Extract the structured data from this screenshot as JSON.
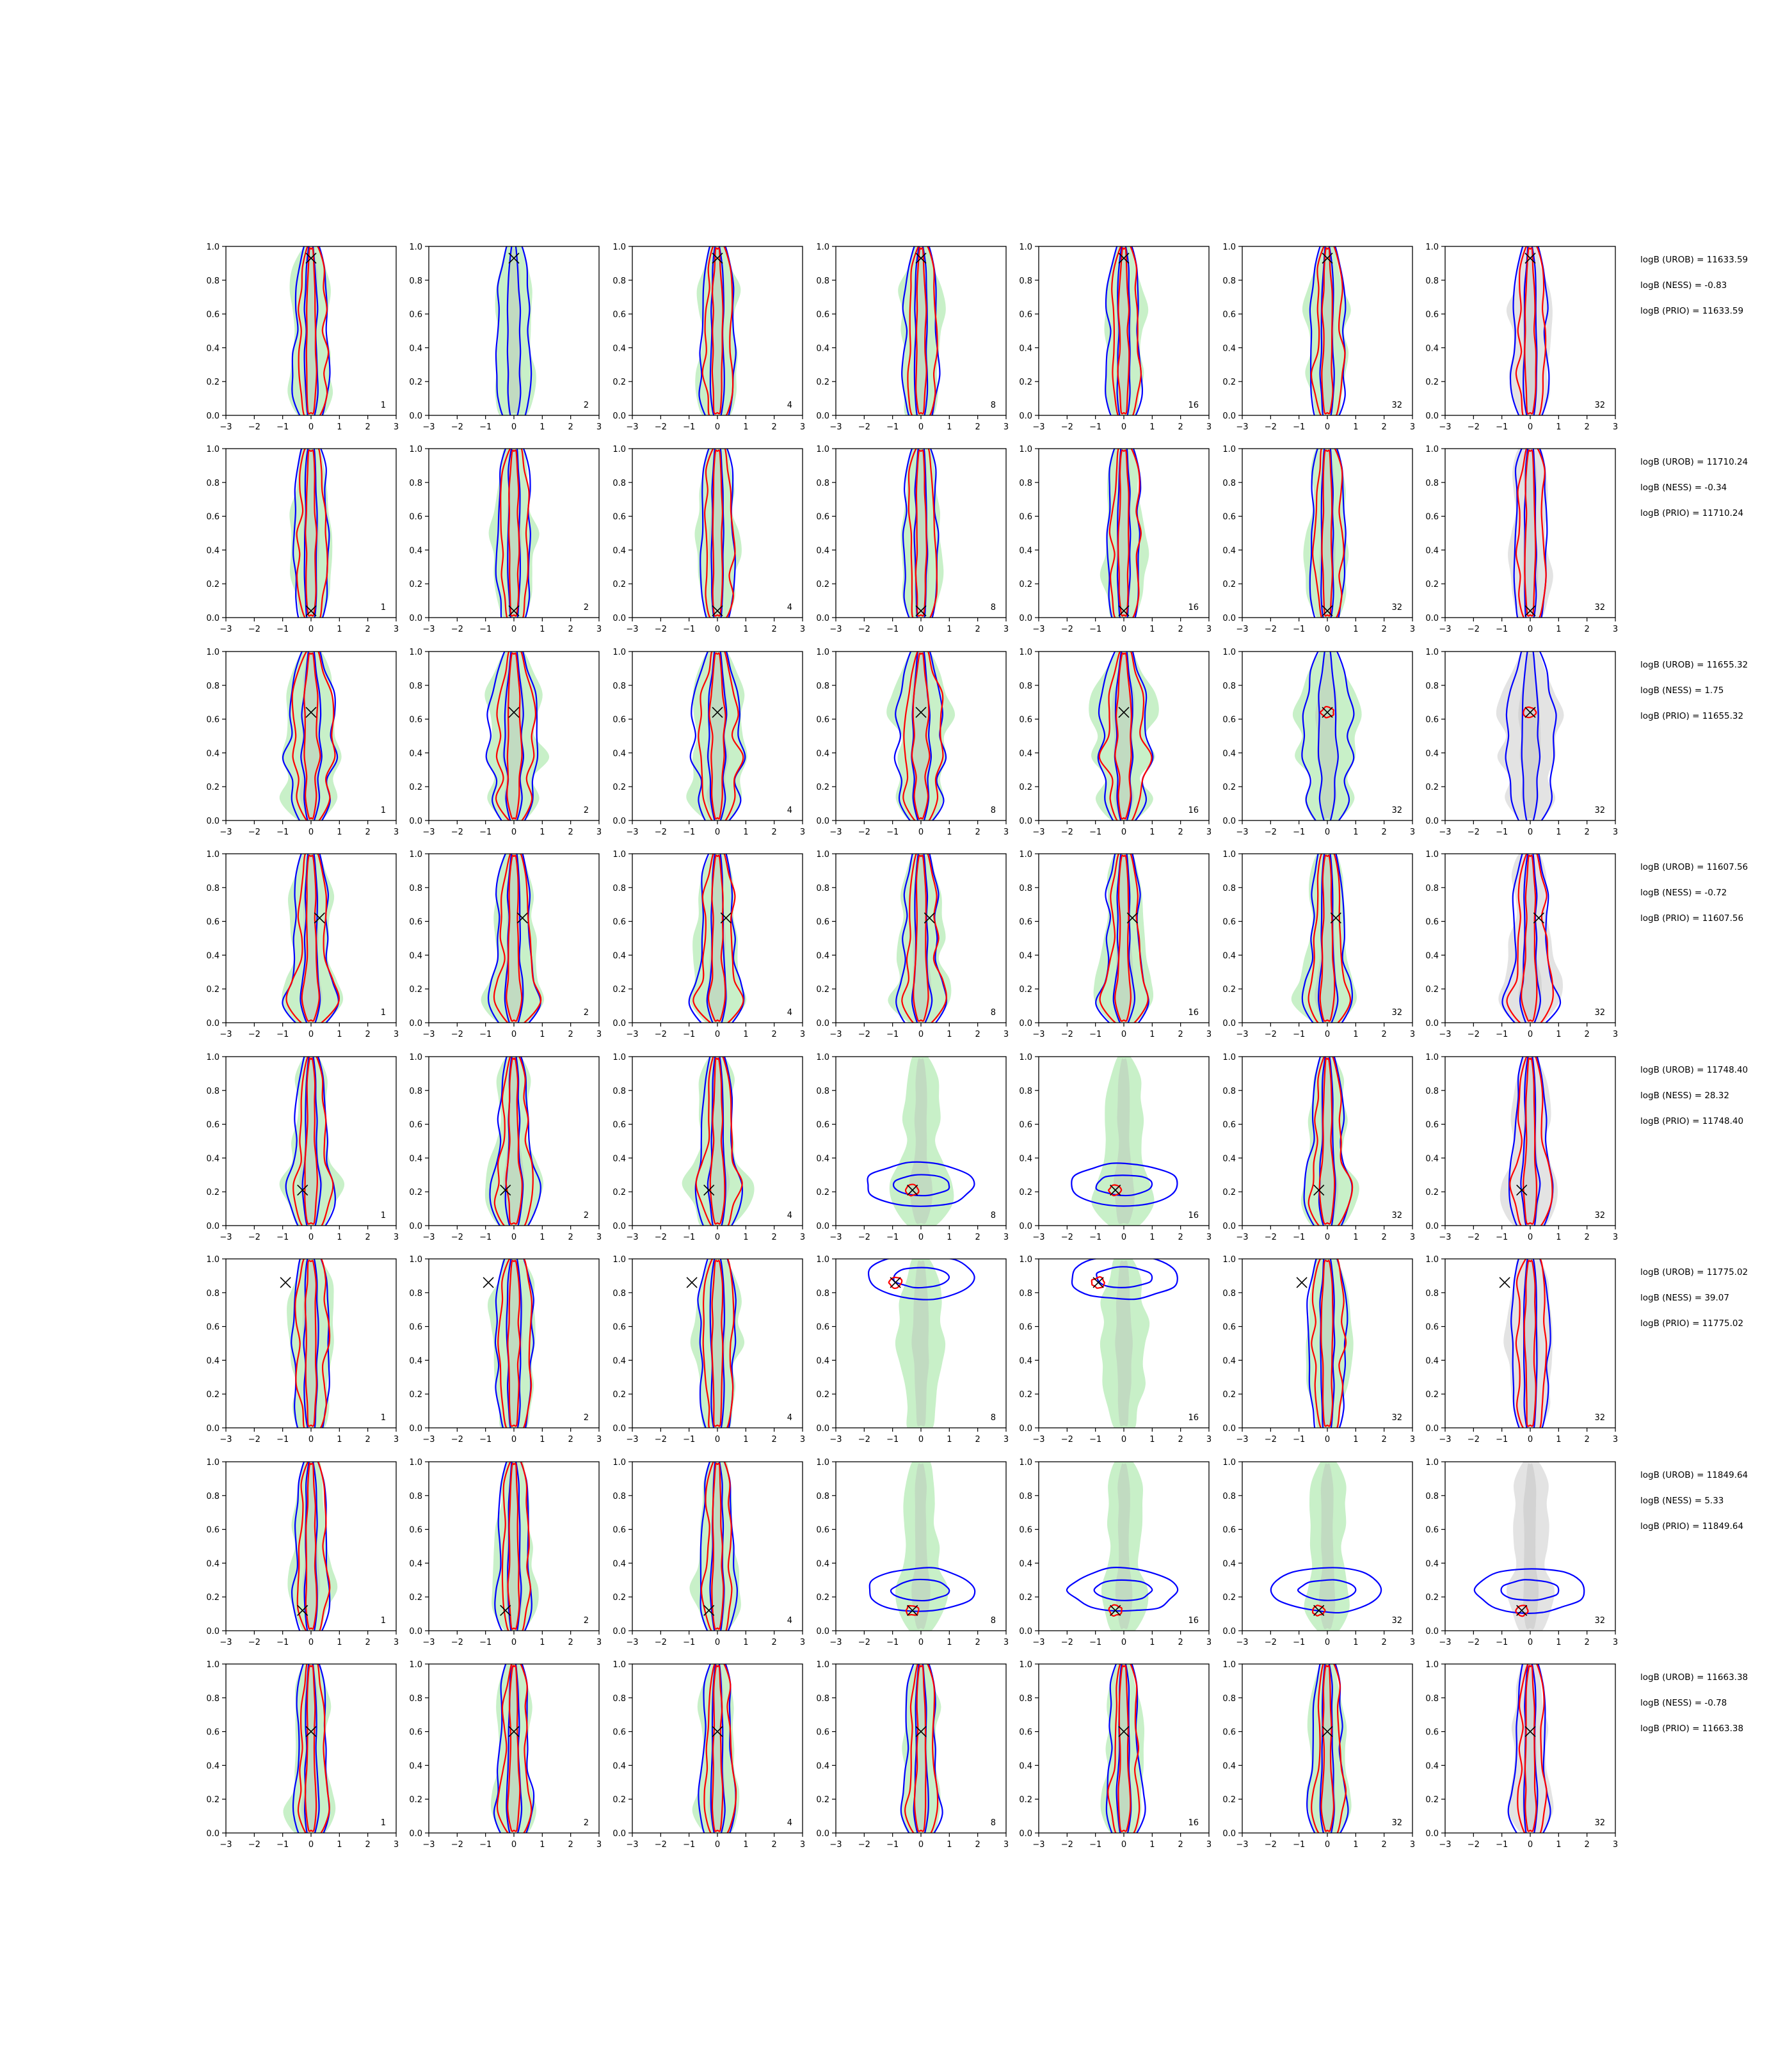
{
  "colors": {
    "background_fill": "#c8f0c8",
    "background_fill_alt": "#e3e3e3",
    "inner_shade": "#b4b4b4",
    "blue_contour": "#0000ff",
    "red_contour": "#ff0000",
    "marker": "#000000"
  },
  "chart_data": {
    "type": "grid of 2D density contour plots",
    "rows": 8,
    "cols": 7,
    "xlim": [
      -3,
      3
    ],
    "ylim": [
      0.0,
      1.0
    ],
    "xticks": [
      "−3",
      "−2",
      "−1",
      "0",
      "1",
      "2",
      "3"
    ],
    "yticks": [
      "0.0",
      "0.2",
      "0.4",
      "0.6",
      "0.8",
      "1.0"
    ],
    "col_tags": [
      "1",
      "2",
      "4",
      "8",
      "16",
      "32",
      "32"
    ],
    "marker": "x",
    "grid": false,
    "legend": "none",
    "row_markers": [
      {
        "x": 0.0,
        "y": 0.93
      },
      {
        "x": 0.0,
        "y": 0.04
      },
      {
        "x": 0.0,
        "y": 0.64
      },
      {
        "x": 0.3,
        "y": 0.62
      },
      {
        "x": -0.3,
        "y": 0.21
      },
      {
        "x": -0.9,
        "y": 0.86
      },
      {
        "x": -0.3,
        "y": 0.12
      },
      {
        "x": 0.0,
        "y": 0.6
      }
    ],
    "logB": [
      {
        "UROB": "11633.59",
        "NESS": "-0.83",
        "PRIO": "11633.59"
      },
      {
        "UROB": "11710.24",
        "NESS": "-0.34",
        "PRIO": "11710.24"
      },
      {
        "UROB": "11655.32",
        "NESS": "1.75",
        "PRIO": "11655.32"
      },
      {
        "UROB": "11607.56",
        "NESS": "-0.72",
        "PRIO": "11607.56"
      },
      {
        "UROB": "11748.40",
        "NESS": "28.32",
        "PRIO": "11748.40"
      },
      {
        "UROB": "11775.02",
        "NESS": "39.07",
        "PRIO": "11775.02"
      },
      {
        "UROB": "11849.64",
        "NESS": "5.33",
        "PRIO": "11849.64"
      },
      {
        "UROB": "11663.38",
        "NESS": "-0.78",
        "PRIO": "11663.38"
      }
    ],
    "logB_labels": {
      "UROB": "logB (UROB) = ",
      "NESS": "logB (NESS) = ",
      "PRIO": "logB (PRIO) = "
    }
  }
}
